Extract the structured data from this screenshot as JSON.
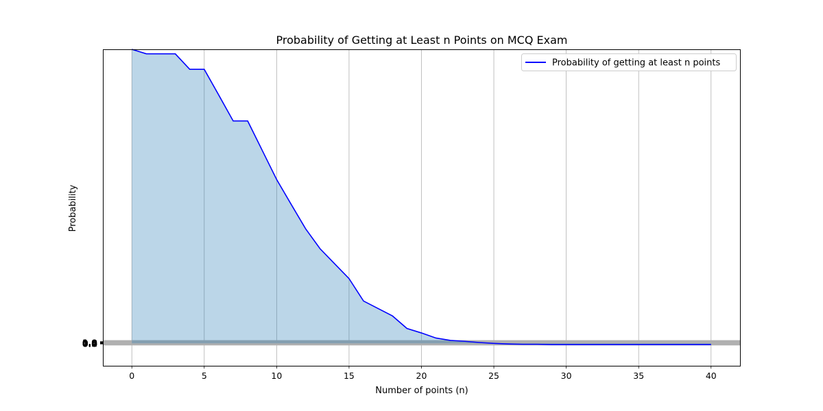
{
  "chart_data": {
    "type": "area",
    "title": "Probability of Getting at Least n Points on MCQ Exam",
    "xlabel": "Number of points (n)",
    "ylabel": "Probability",
    "xlim": [
      -2,
      42
    ],
    "ylim": [
      -0.00075,
      0.00985
    ],
    "x_ticks": [
      0,
      5,
      10,
      15,
      20,
      25,
      30,
      35,
      40
    ],
    "x_tick_labels": [
      "0",
      "5",
      "10",
      "15",
      "20",
      "25",
      "30",
      "35",
      "40"
    ],
    "y_tick_labels": [
      "0.0",
      "0.2",
      "0.4",
      "0.6",
      "0.8",
      "1.0"
    ],
    "grid": "x-major",
    "legend_position": "top-right",
    "series": [
      {
        "name": "Probability of getting at least n points",
        "color": "#0000ff",
        "fill_color": "#1f77b4",
        "x": [
          0,
          1,
          2,
          3,
          4,
          5,
          6,
          7,
          8,
          9,
          10,
          11,
          12,
          13,
          14,
          15,
          16,
          17,
          18,
          19,
          20,
          21,
          22,
          23,
          24,
          25,
          26,
          27,
          28,
          29,
          30,
          31,
          32,
          33,
          34,
          35,
          36,
          37,
          38,
          39,
          40
        ],
        "y": [
          0.00985,
          0.0097,
          0.0097,
          0.0097,
          0.00918,
          0.00918,
          0.00832,
          0.00745,
          0.00745,
          0.00647,
          0.00549,
          0.00466,
          0.00384,
          0.00317,
          0.00267,
          0.00217,
          0.00142,
          0.00117,
          0.00092,
          0.0005,
          0.00035,
          0.00018,
          0.0001,
          7e-05,
          3e-05,
          0.0,
          -2e-05,
          -3e-05,
          -3e-05,
          -4e-05,
          -4e-05,
          -4e-05,
          -4e-05,
          -4e-05,
          -4e-05,
          -4e-05,
          -4e-05,
          -4e-05,
          -4e-05,
          -4e-05,
          -4e-05
        ]
      }
    ]
  }
}
